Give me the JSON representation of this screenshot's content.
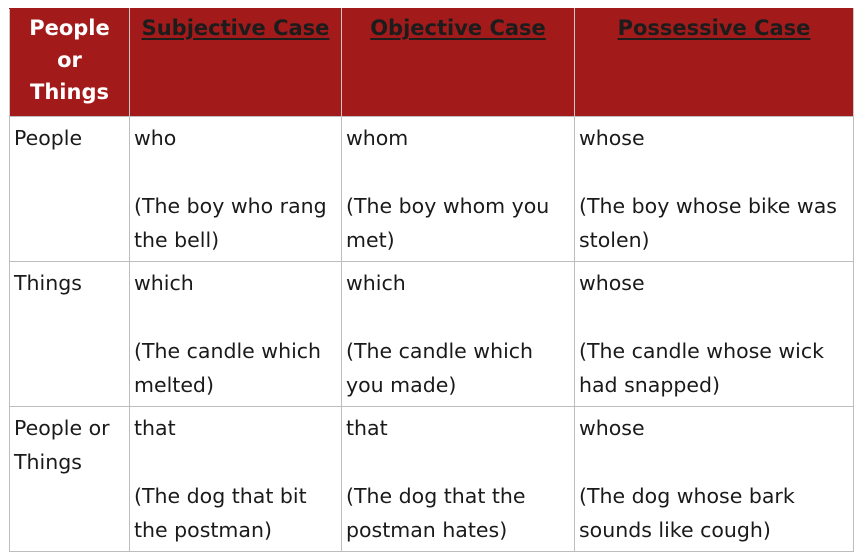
{
  "header": {
    "col0": "People or Things",
    "col1": "Subjective Case",
    "col2": "Objective Case",
    "col3": "Possessive Case"
  },
  "rows": [
    {
      "label": "People",
      "subjective": {
        "word": "who",
        "example": "(The boy who rang the bell)"
      },
      "objective": {
        "word": "whom",
        "example": "(The boy whom you met)"
      },
      "possessive": {
        "word": "whose",
        "example": "(The boy whose bike was stolen)"
      }
    },
    {
      "label": "Things",
      "subjective": {
        "word": "which",
        "example": "(The candle which melted)"
      },
      "objective": {
        "word": "which",
        "example": "(The candle which you made)"
      },
      "possessive": {
        "word": "whose",
        "example": "(The candle whose wick had snapped)"
      }
    },
    {
      "label": "People or Things",
      "subjective": {
        "word": "that",
        "example": "(The dog that bit the postman)"
      },
      "objective": {
        "word": "that",
        "example": "(The dog that the postman hates)"
      },
      "possessive": {
        "word": "whose",
        "example": "(The dog whose bark sounds like cough)"
      }
    }
  ],
  "colors": {
    "header_bg": "#a31a1a",
    "header_text": "#ffffff",
    "header_link_text": "#1c1c1c",
    "border": "#bdbdbd"
  }
}
